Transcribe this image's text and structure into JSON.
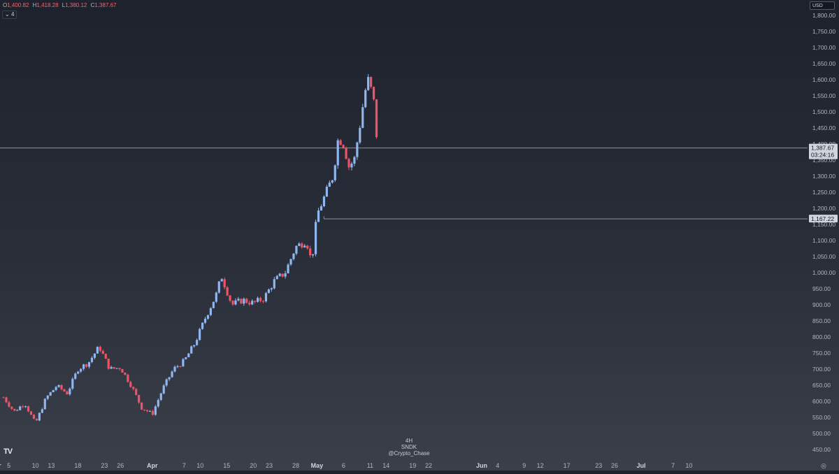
{
  "header": {
    "ohlc": [
      {
        "key": "O",
        "value": "1,400.82"
      },
      {
        "key": "H",
        "value": "1,418.28"
      },
      {
        "key": "L",
        "value": "1,380.12"
      },
      {
        "key": "C",
        "value": "1,387.67"
      }
    ],
    "interval_toggle": "4",
    "currency": "USD"
  },
  "watermark": {
    "interval": "4H",
    "symbol": "SNDK",
    "author": "@Crypto_Chase"
  },
  "logo": "TV",
  "colors": {
    "up": "#8fb6f0",
    "down": "#ef5366",
    "line": "#9aa0ab",
    "label_bg": "#d1d4dc",
    "label_text": "#131722"
  },
  "chart_data": {
    "type": "candlestick",
    "ylim": [
      430,
      1820
    ],
    "y_ticks": [
      450,
      500,
      550,
      600,
      650,
      700,
      750,
      800,
      850,
      900,
      950,
      1000,
      1050,
      1100,
      1150,
      1200,
      1250,
      1300,
      1350,
      1400,
      1450,
      1500,
      1550,
      1600,
      1650,
      1700,
      1750,
      1800
    ],
    "y_tick_labels": [
      "450.00",
      "500.00",
      "550.00",
      "600.00",
      "650.00",
      "700.00",
      "750.00",
      "800.00",
      "850.00",
      "900.00",
      "950.00",
      "1,000.00",
      "1,050.00",
      "1,100.00",
      "1,150.00",
      "1,200.00",
      "1,250.00",
      "1,300.00",
      "1,350.00",
      "1,400.00",
      "1,450.00",
      "1,500.00",
      "1,550.00",
      "1,600.00",
      "1,650.00",
      "1,700.00",
      "1,750.00",
      "1,800.00"
    ],
    "x_ticks": [
      {
        "label": "ar",
        "t": -1
      },
      {
        "label": "5",
        "t": 1
      },
      {
        "label": "10",
        "t": 6
      },
      {
        "label": "13",
        "t": 9
      },
      {
        "label": "18",
        "t": 14
      },
      {
        "label": "23",
        "t": 19
      },
      {
        "label": "26",
        "t": 22
      },
      {
        "label": "Apr",
        "t": 28
      },
      {
        "label": "7",
        "t": 34
      },
      {
        "label": "10",
        "t": 37
      },
      {
        "label": "15",
        "t": 42
      },
      {
        "label": "20",
        "t": 47
      },
      {
        "label": "23",
        "t": 50
      },
      {
        "label": "28",
        "t": 55
      },
      {
        "label": "May",
        "t": 59
      },
      {
        "label": "6",
        "t": 64
      },
      {
        "label": "11",
        "t": 69
      },
      {
        "label": "14",
        "t": 72
      },
      {
        "label": "19",
        "t": 77
      },
      {
        "label": "22",
        "t": 80
      },
      {
        "label": "Jun",
        "t": 90
      },
      {
        "label": "4",
        "t": 93
      },
      {
        "label": "9",
        "t": 98
      },
      {
        "label": "12",
        "t": 101
      },
      {
        "label": "17",
        "t": 106
      },
      {
        "label": "23",
        "t": 112
      },
      {
        "label": "26",
        "t": 115
      },
      {
        "label": "Jul",
        "t": 120
      },
      {
        "label": "7",
        "t": 126
      },
      {
        "label": "10",
        "t": 129
      }
    ],
    "price_lines": [
      {
        "value": 1387.67,
        "label": "1,387.67",
        "sublabel": "03:24:16",
        "extent": "full"
      },
      {
        "value": 1167.22,
        "label": "1,167.22",
        "extent": "from-may"
      }
    ],
    "candle_anchors": [
      {
        "t": 0,
        "p": 612
      },
      {
        "t": 2,
        "p": 568
      },
      {
        "t": 4,
        "p": 595
      },
      {
        "t": 6,
        "p": 530
      },
      {
        "t": 8,
        "p": 610
      },
      {
        "t": 10,
        "p": 648
      },
      {
        "t": 12,
        "p": 625
      },
      {
        "t": 14,
        "p": 700
      },
      {
        "t": 16,
        "p": 720
      },
      {
        "t": 18,
        "p": 770
      },
      {
        "t": 20,
        "p": 700
      },
      {
        "t": 22,
        "p": 705
      },
      {
        "t": 24,
        "p": 650
      },
      {
        "t": 26,
        "p": 580
      },
      {
        "t": 28,
        "p": 560
      },
      {
        "t": 30,
        "p": 640
      },
      {
        "t": 32,
        "p": 700
      },
      {
        "t": 34,
        "p": 725
      },
      {
        "t": 36,
        "p": 780
      },
      {
        "t": 38,
        "p": 860
      },
      {
        "t": 40,
        "p": 930
      },
      {
        "t": 41,
        "p": 990
      },
      {
        "t": 43,
        "p": 900
      },
      {
        "t": 45,
        "p": 915
      },
      {
        "t": 47,
        "p": 905
      },
      {
        "t": 49,
        "p": 920
      },
      {
        "t": 51,
        "p": 975
      },
      {
        "t": 53,
        "p": 1000
      },
      {
        "t": 55,
        "p": 1080
      },
      {
        "t": 57,
        "p": 1100
      },
      {
        "t": 58,
        "p": 1030
      },
      {
        "t": 59,
        "p": 1180
      },
      {
        "t": 61,
        "p": 1260
      },
      {
        "t": 62,
        "p": 1300
      },
      {
        "t": 63,
        "p": 1420
      },
      {
        "t": 64,
        "p": 1400
      },
      {
        "t": 65,
        "p": 1330
      },
      {
        "t": 66,
        "p": 1350
      },
      {
        "t": 67,
        "p": 1450
      },
      {
        "t": 68,
        "p": 1560
      },
      {
        "t": 68.6,
        "p": 1600
      },
      {
        "t": 69.6,
        "p": 1545
      },
      {
        "t": 70.4,
        "p": 1390
      }
    ]
  }
}
